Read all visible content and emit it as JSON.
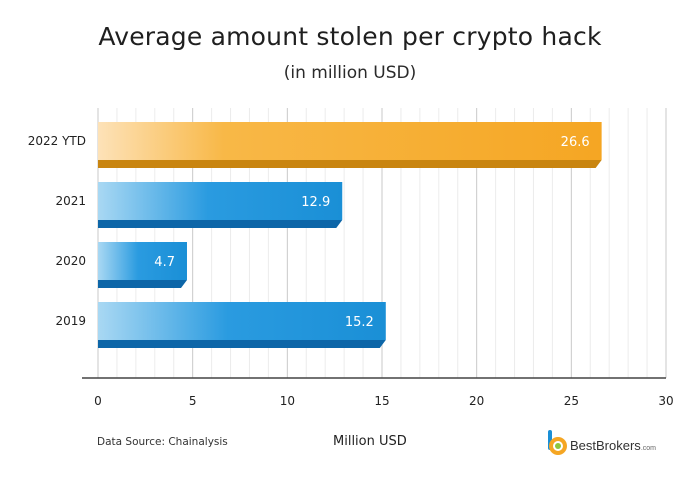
{
  "chart_data": {
    "type": "bar",
    "orientation": "horizontal",
    "title": "Average amount stolen per crypto hack",
    "subtitle": "(in million USD)",
    "xlabel": "Million USD",
    "ylabel": "",
    "categories": [
      "2022 YTD",
      "2021",
      "2020",
      "2019"
    ],
    "values": [
      26.6,
      12.9,
      4.7,
      15.2
    ],
    "value_labels": [
      "26.6",
      "12.9",
      "4.7",
      "15.2"
    ],
    "xlim": [
      0,
      30
    ],
    "xticks": [
      "0",
      "5",
      "10",
      "15",
      "20",
      "25",
      "30"
    ],
    "grid": true,
    "colors": {
      "highlight_bar": "#f5a623",
      "highlight_bar_light": "#fde2b8",
      "highlight_bar_shadow": "#c98510",
      "bar": "#1a8fd6",
      "bar_light": "#a9d8f3",
      "bar_shadow": "#0d66a8"
    }
  },
  "footer": {
    "source": "Data Source: Chainalysis",
    "brand": "BestBrokers",
    "brand_suffix": ".com"
  }
}
